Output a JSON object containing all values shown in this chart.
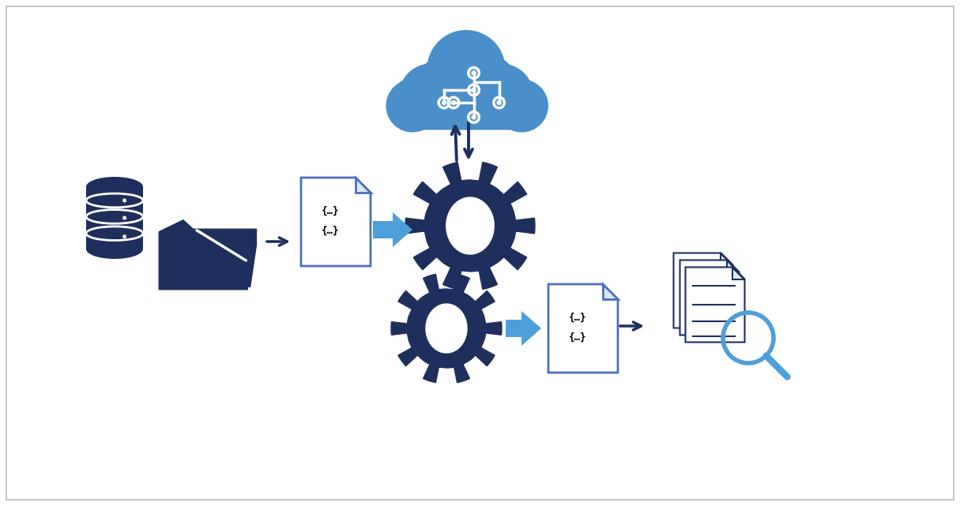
{
  "bg_color": "#ffffff",
  "border_color": "#c8c8c8",
  "dark_navy": "#1e2f5e",
  "bright_blue": "#4d9fda",
  "sky_blue": "#4a8fc9",
  "figsize": [
    12.15,
    6.41
  ],
  "dpi": 100
}
